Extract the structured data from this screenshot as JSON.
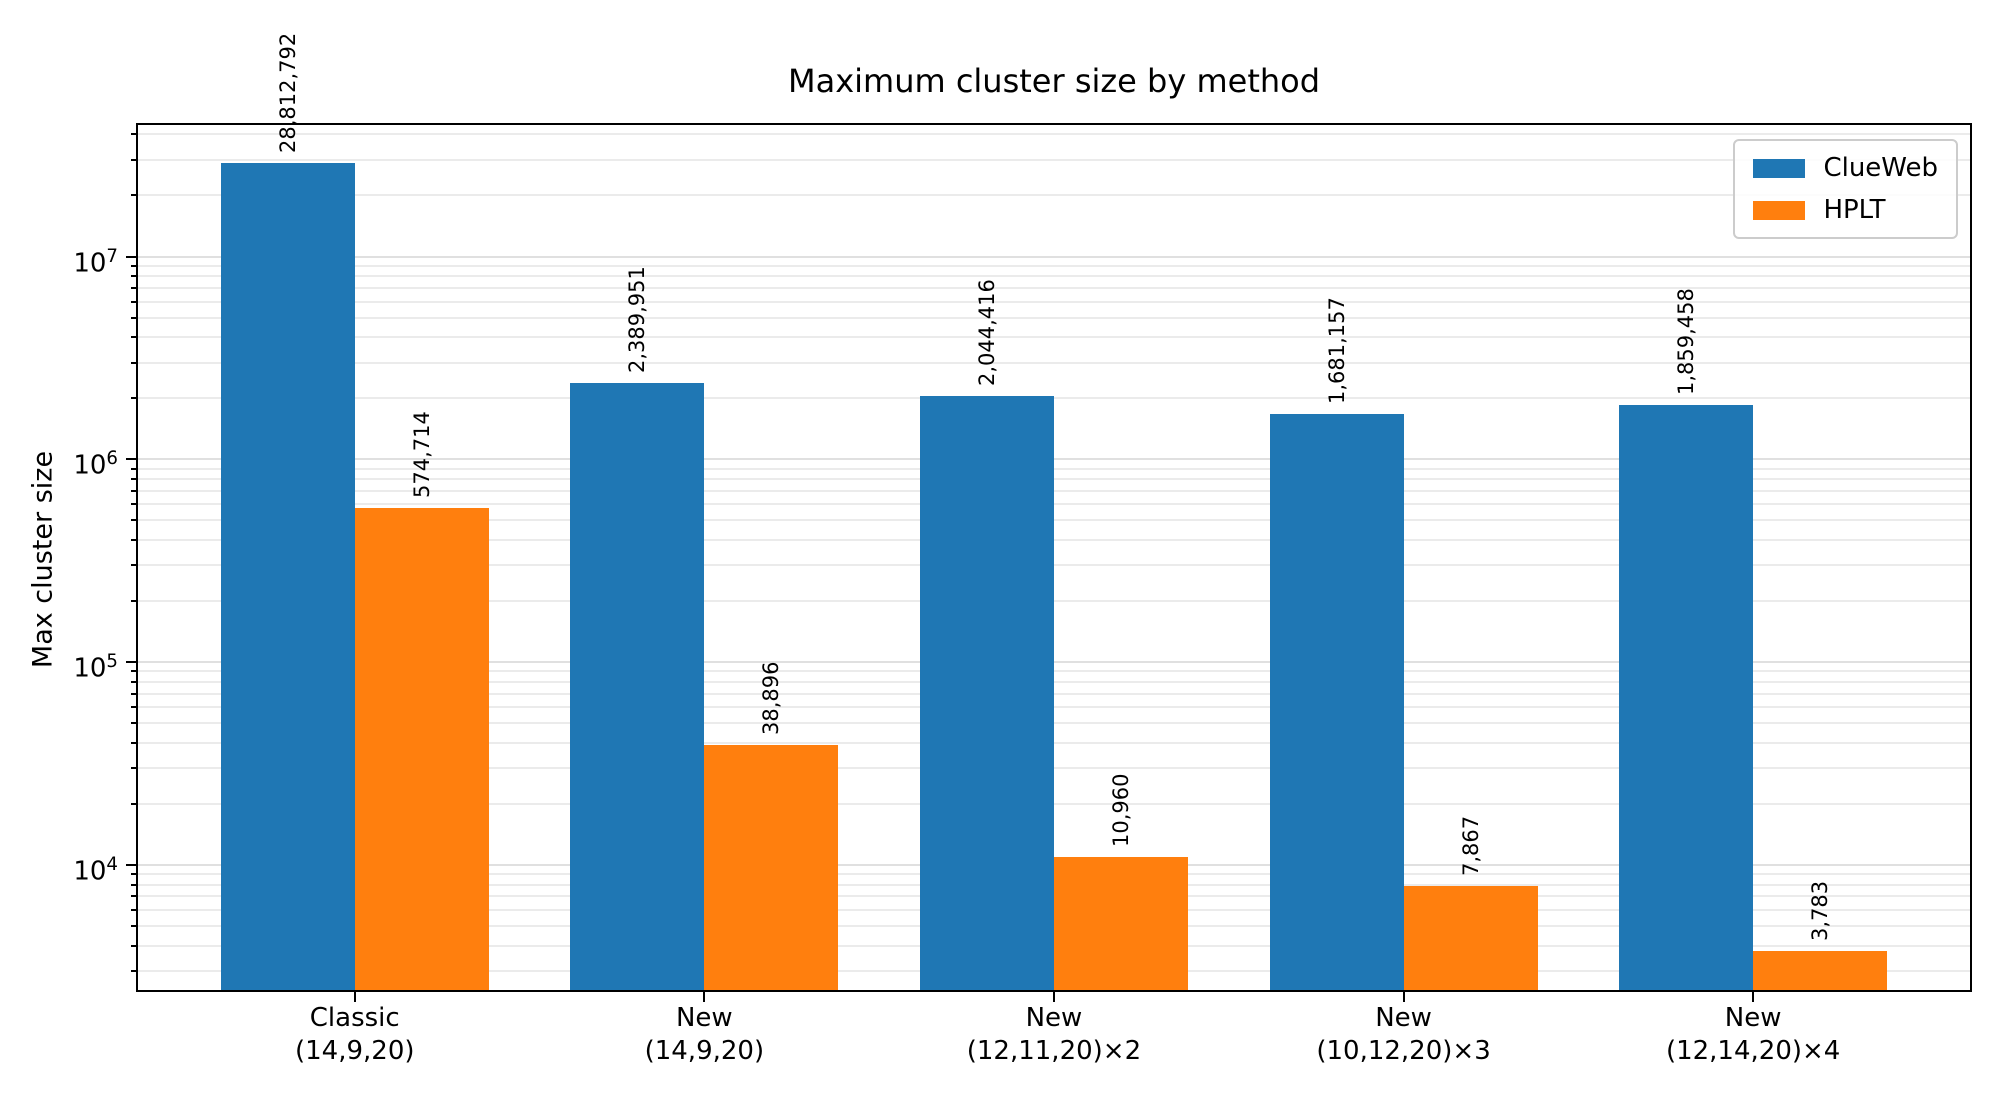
{
  "title": "Maximum cluster size by method",
  "chart_data": {
    "type": "bar",
    "title": "Maximum cluster size by method",
    "xlabel": "",
    "ylabel": "Max cluster size",
    "yscale": "log",
    "ylim": [
      2420,
      44500000
    ],
    "grid": "both",
    "legend_position": "upper right",
    "categories": [
      {
        "line1": "Classic",
        "line2": "(14,9,20)"
      },
      {
        "line1": "New",
        "line2": "(14,9,20)"
      },
      {
        "line1": "New",
        "line2": "(12,11,20)×2"
      },
      {
        "line1": "New",
        "line2": "(10,12,20)×3"
      },
      {
        "line1": "New",
        "line2": "(12,14,20)×4"
      }
    ],
    "series": [
      {
        "name": "ClueWeb",
        "color": "#1f77b4",
        "values": [
          28812792,
          2389951,
          2044416,
          1681157,
          1859458
        ],
        "labels": [
          "28,812,792",
          "2,389,951",
          "2,044,416",
          "1,681,157",
          "1,859,458"
        ]
      },
      {
        "name": "HPLT",
        "color": "#ff7f0e",
        "values": [
          574714,
          38896,
          10960,
          7867,
          3783
        ],
        "labels": [
          "574,714",
          "38,896",
          "10,960",
          "7,867",
          "3,783"
        ]
      }
    ],
    "yticks": [
      {
        "value": 10000,
        "base": "10",
        "exp": "4"
      },
      {
        "value": 100000,
        "base": "10",
        "exp": "5"
      },
      {
        "value": 1000000,
        "base": "10",
        "exp": "6"
      },
      {
        "value": 10000000,
        "base": "10",
        "exp": "7"
      }
    ]
  },
  "colors": {
    "clueweb": "#1f77b4",
    "hplt": "#ff7f0e",
    "grid_major": "#e0e0e0",
    "grid_minor": "#ebebeb",
    "spine": "#000000"
  }
}
